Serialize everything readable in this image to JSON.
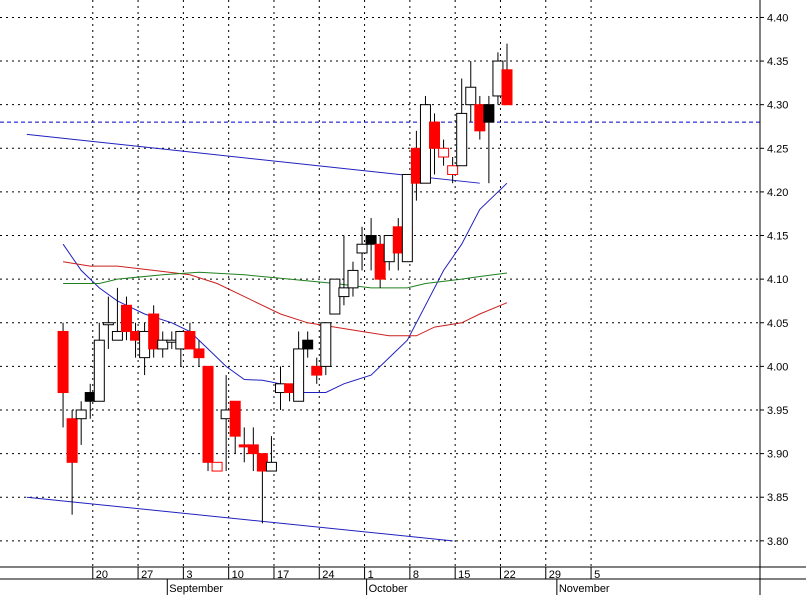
{
  "chart_data": {
    "type": "candlestick",
    "title": "",
    "ylim": [
      3.77,
      4.42
    ],
    "y_ticks": [
      "3.80",
      "3.85",
      "3.90",
      "3.95",
      "4.00",
      "4.05",
      "4.10",
      "4.15",
      "4.20",
      "4.25",
      "4.30",
      "4.35",
      "4.40"
    ],
    "x_day_labels": [
      "20",
      "27",
      "3",
      "10",
      "17",
      "24",
      "1",
      "8",
      "15",
      "22",
      "29",
      "5"
    ],
    "x_month_labels": [
      "September",
      "October",
      "November"
    ],
    "grid": true,
    "reference_line": {
      "value": 4.28,
      "style": "dashed",
      "color": "#0000cc"
    },
    "candles": [
      {
        "date": "Aug 16",
        "open": 4.04,
        "high": 4.05,
        "low": 3.93,
        "close": 3.97,
        "color": "red"
      },
      {
        "date": "Aug 17",
        "open": 3.94,
        "high": 3.95,
        "low": 3.83,
        "close": 3.89,
        "color": "red"
      },
      {
        "date": "Aug 18",
        "open": 3.94,
        "high": 3.96,
        "low": 3.91,
        "close": 3.95,
        "color": "white"
      },
      {
        "date": "Aug 19",
        "open": 3.97,
        "high": 3.98,
        "low": 3.94,
        "close": 3.96,
        "color": "black"
      },
      {
        "date": "Aug 20",
        "open": 3.96,
        "high": 4.05,
        "low": 3.96,
        "close": 4.03,
        "color": "white"
      },
      {
        "date": "Aug 23",
        "open": 4.05,
        "high": 4.08,
        "low": 4.02,
        "close": 4.05,
        "color": "white"
      },
      {
        "date": "Aug 24",
        "open": 4.03,
        "high": 4.09,
        "low": 4.03,
        "close": 4.04,
        "color": "white"
      },
      {
        "date": "Aug 25",
        "open": 4.07,
        "high": 4.08,
        "low": 4.03,
        "close": 4.04,
        "color": "red"
      },
      {
        "date": "Aug 26",
        "open": 4.04,
        "high": 4.05,
        "low": 4.01,
        "close": 4.03,
        "color": "red"
      },
      {
        "date": "Aug 27",
        "open": 4.01,
        "high": 4.05,
        "low": 3.99,
        "close": 4.04,
        "color": "white"
      },
      {
        "date": "Aug 30",
        "open": 4.06,
        "high": 4.07,
        "low": 4.01,
        "close": 4.02,
        "color": "red"
      },
      {
        "date": "Aug 31",
        "open": 4.02,
        "high": 4.04,
        "low": 4.01,
        "close": 4.03,
        "color": "white"
      },
      {
        "date": "Sep 1",
        "open": 4.03,
        "high": 4.04,
        "low": 4.02,
        "close": 4.03,
        "color": "white"
      },
      {
        "date": "Sep 2",
        "open": 4.02,
        "high": 4.04,
        "low": 4.0,
        "close": 4.04,
        "color": "white"
      },
      {
        "date": "Sep 3",
        "open": 4.04,
        "high": 4.05,
        "low": 4.02,
        "close": 4.02,
        "color": "red"
      },
      {
        "date": "Sep 6",
        "open": 4.02,
        "high": 4.03,
        "low": 4.0,
        "close": 4.01,
        "color": "red"
      },
      {
        "date": "Sep 7",
        "open": 4.0,
        "high": 4.0,
        "low": 3.88,
        "close": 3.89,
        "color": "red"
      },
      {
        "date": "Sep 8",
        "open": 3.88,
        "high": 3.89,
        "low": 3.88,
        "close": 3.89,
        "color": "red-outline"
      },
      {
        "date": "Sep 9",
        "open": 3.94,
        "high": 3.99,
        "low": 3.88,
        "close": 3.95,
        "color": "white"
      },
      {
        "date": "Sep 10",
        "open": 3.96,
        "high": 3.96,
        "low": 3.9,
        "close": 3.92,
        "color": "red"
      },
      {
        "date": "Sep 13",
        "open": 3.91,
        "high": 3.93,
        "low": 3.89,
        "close": 3.91,
        "color": "red"
      },
      {
        "date": "Sep 14",
        "open": 3.91,
        "high": 3.93,
        "low": 3.88,
        "close": 3.9,
        "color": "red"
      },
      {
        "date": "Sep 15",
        "open": 3.9,
        "high": 3.9,
        "low": 3.82,
        "close": 3.88,
        "color": "red"
      },
      {
        "date": "Sep 16",
        "open": 3.88,
        "high": 3.92,
        "low": 3.88,
        "close": 3.89,
        "color": "white"
      },
      {
        "date": "Sep 17",
        "open": 3.97,
        "high": 4.0,
        "low": 3.95,
        "close": 3.98,
        "color": "white"
      },
      {
        "date": "Sep 20",
        "open": 3.98,
        "high": 3.98,
        "low": 3.96,
        "close": 3.97,
        "color": "red"
      },
      {
        "date": "Sep 21",
        "open": 3.96,
        "high": 4.04,
        "low": 3.96,
        "close": 4.02,
        "color": "white"
      },
      {
        "date": "Sep 22",
        "open": 4.02,
        "high": 4.04,
        "low": 4.01,
        "close": 4.03,
        "color": "black"
      },
      {
        "date": "Sep 23",
        "open": 4.0,
        "high": 4.01,
        "low": 3.98,
        "close": 3.99,
        "color": "red"
      },
      {
        "date": "Sep 24",
        "open": 4.0,
        "high": 4.05,
        "low": 3.99,
        "close": 4.05,
        "color": "white"
      },
      {
        "date": "Sep 27",
        "open": 4.06,
        "high": 4.1,
        "low": 4.06,
        "close": 4.1,
        "color": "white"
      },
      {
        "date": "Sep 28",
        "open": 4.08,
        "high": 4.15,
        "low": 4.07,
        "close": 4.09,
        "color": "white"
      },
      {
        "date": "Sep 29",
        "open": 4.09,
        "high": 4.12,
        "low": 4.08,
        "close": 4.11,
        "color": "white"
      },
      {
        "date": "Sep 30",
        "open": 4.13,
        "high": 4.16,
        "low": 4.11,
        "close": 4.14,
        "color": "white"
      },
      {
        "date": "Oct 1",
        "open": 4.14,
        "high": 4.17,
        "low": 4.11,
        "close": 4.15,
        "color": "black"
      },
      {
        "date": "Oct 4",
        "open": 4.14,
        "high": 4.15,
        "low": 4.09,
        "close": 4.1,
        "color": "red"
      },
      {
        "date": "Oct 5",
        "open": 4.12,
        "high": 4.15,
        "low": 4.11,
        "close": 4.15,
        "color": "white"
      },
      {
        "date": "Oct 6",
        "open": 4.16,
        "high": 4.17,
        "low": 4.11,
        "close": 4.13,
        "color": "red"
      },
      {
        "date": "Oct 7",
        "open": 4.12,
        "high": 4.22,
        "low": 4.12,
        "close": 4.22,
        "color": "white"
      },
      {
        "date": "Oct 8",
        "open": 4.25,
        "high": 4.27,
        "low": 4.19,
        "close": 4.21,
        "color": "red"
      },
      {
        "date": "Oct 11",
        "open": 4.21,
        "high": 4.31,
        "low": 4.21,
        "close": 4.3,
        "color": "white"
      },
      {
        "date": "Oct 12",
        "open": 4.28,
        "high": 4.29,
        "low": 4.22,
        "close": 4.25,
        "color": "red"
      },
      {
        "date": "Oct 13",
        "open": 4.25,
        "high": 4.26,
        "low": 4.23,
        "close": 4.24,
        "color": "red-outline"
      },
      {
        "date": "Oct 14",
        "open": 4.23,
        "high": 4.24,
        "low": 4.21,
        "close": 4.22,
        "color": "red-outline"
      },
      {
        "date": "Oct 15",
        "open": 4.23,
        "high": 4.33,
        "low": 4.23,
        "close": 4.29,
        "color": "white"
      },
      {
        "date": "Oct 18",
        "open": 4.3,
        "high": 4.35,
        "low": 4.28,
        "close": 4.32,
        "color": "white"
      },
      {
        "date": "Oct 19",
        "open": 4.3,
        "high": 4.31,
        "low": 4.26,
        "close": 4.27,
        "color": "red"
      },
      {
        "date": "Oct 20",
        "open": 4.28,
        "high": 4.31,
        "low": 4.21,
        "close": 4.3,
        "color": "black"
      },
      {
        "date": "Oct 21",
        "open": 4.31,
        "high": 4.36,
        "low": 4.3,
        "close": 4.35,
        "color": "white"
      },
      {
        "date": "Oct 22",
        "open": 4.34,
        "high": 4.37,
        "low": 4.3,
        "close": 4.3,
        "color": "red"
      }
    ],
    "series": [
      {
        "color": "#2020c0",
        "points": [
          {
            "date": "Aug 16",
            "y": 4.14
          },
          {
            "date": "Aug 18",
            "y": 4.11
          },
          {
            "date": "Aug 20",
            "y": 4.09
          },
          {
            "date": "Aug 24",
            "y": 4.075
          },
          {
            "date": "Aug 27",
            "y": 4.06
          },
          {
            "date": "Sep 1",
            "y": 4.05
          },
          {
            "date": "Sep 3",
            "y": 4.04
          },
          {
            "date": "Sep 7",
            "y": 4.02
          },
          {
            "date": "Sep 9",
            "y": 4.0
          },
          {
            "date": "Sep 13",
            "y": 3.985
          },
          {
            "date": "Sep 15",
            "y": 3.984
          },
          {
            "date": "Sep 17",
            "y": 3.98
          },
          {
            "date": "Sep 21",
            "y": 3.97
          },
          {
            "date": "Sep 24",
            "y": 3.97
          },
          {
            "date": "Sep 28",
            "y": 3.98
          },
          {
            "date": "Oct 1",
            "y": 3.99
          },
          {
            "date": "Oct 5",
            "y": 4.01
          },
          {
            "date": "Oct 7",
            "y": 4.03
          },
          {
            "date": "Oct 11",
            "y": 4.07
          },
          {
            "date": "Oct 13",
            "y": 4.11
          },
          {
            "date": "Oct 15",
            "y": 4.14
          },
          {
            "date": "Oct 19",
            "y": 4.18
          },
          {
            "date": "Oct 22",
            "y": 4.21
          }
        ]
      },
      {
        "color": "#cc2020",
        "points": [
          {
            "date": "Aug 16",
            "y": 4.12
          },
          {
            "date": "Aug 19",
            "y": 4.115
          },
          {
            "date": "Aug 24",
            "y": 4.115
          },
          {
            "date": "Aug 30",
            "y": 4.11
          },
          {
            "date": "Sep 3",
            "y": 4.105
          },
          {
            "date": "Sep 8",
            "y": 4.095
          },
          {
            "date": "Sep 13",
            "y": 4.08
          },
          {
            "date": "Sep 17",
            "y": 4.06
          },
          {
            "date": "Sep 22",
            "y": 4.05
          },
          {
            "date": "Sep 27",
            "y": 4.045
          },
          {
            "date": "Sep 30",
            "y": 4.04
          },
          {
            "date": "Oct 5",
            "y": 4.035
          },
          {
            "date": "Oct 8",
            "y": 4.035
          },
          {
            "date": "Oct 12",
            "y": 4.045
          },
          {
            "date": "Oct 15",
            "y": 4.05
          },
          {
            "date": "Oct 19",
            "y": 4.06
          },
          {
            "date": "Oct 22",
            "y": 4.073
          }
        ]
      },
      {
        "color": "#208020",
        "points": [
          {
            "date": "Aug 16",
            "y": 4.095
          },
          {
            "date": "Aug 20",
            "y": 4.095
          },
          {
            "date": "Aug 24",
            "y": 4.1
          },
          {
            "date": "Aug 31",
            "y": 4.105
          },
          {
            "date": "Sep 6",
            "y": 4.108
          },
          {
            "date": "Sep 13",
            "y": 4.105
          },
          {
            "date": "Sep 20",
            "y": 4.1
          },
          {
            "date": "Sep 27",
            "y": 4.095
          },
          {
            "date": "Oct 1",
            "y": 4.09
          },
          {
            "date": "Oct 7",
            "y": 4.09
          },
          {
            "date": "Oct 11",
            "y": 4.095
          },
          {
            "date": "Oct 15",
            "y": 4.1
          },
          {
            "date": "Oct 19",
            "y": 4.103
          },
          {
            "date": "Oct 22",
            "y": 4.107
          }
        ]
      }
    ],
    "trendlines": [
      {
        "color": "#2020c0",
        "from": {
          "date": "Aug 10",
          "y": 4.266
        },
        "to": {
          "date": "Oct 19",
          "y": 4.21
        }
      },
      {
        "color": "#2020c0",
        "from": {
          "date": "Aug 10",
          "y": 3.85
        },
        "to": {
          "date": "Oct 14",
          "y": 3.8
        }
      }
    ],
    "colors": {
      "up_fill": "#ffffff",
      "down_fill": "#ff0000",
      "doji": "#000000",
      "grid": "#000000",
      "axis": "#000000"
    }
  }
}
